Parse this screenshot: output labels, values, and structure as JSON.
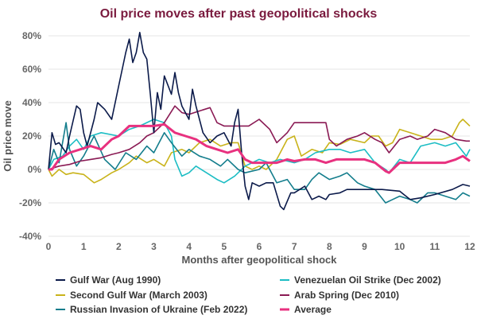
{
  "chart_data": {
    "type": "line",
    "title": "Oil price moves after past geopolitical shocks",
    "xlabel": "Months after geopolitical shock",
    "ylabel": "Oil price move",
    "xlim": [
      0,
      12
    ],
    "ylim": [
      -40,
      80
    ],
    "xticks": [
      "0",
      "1",
      "2",
      "3",
      "4",
      "5",
      "6",
      "7",
      "8",
      "9",
      "10",
      "11",
      "12"
    ],
    "yticks": [
      "-40%",
      "-20%",
      "0%",
      "20%",
      "40%",
      "60%",
      "80%"
    ],
    "grid": "horizontal",
    "legend_position": "bottom",
    "series": [
      {
        "name": "Gulf War (Aug 1990)",
        "color": "#0b1a4a",
        "points": [
          [
            0,
            0
          ],
          [
            0.1,
            22
          ],
          [
            0.2,
            15
          ],
          [
            0.3,
            16
          ],
          [
            0.5,
            10
          ],
          [
            0.6,
            20
          ],
          [
            0.8,
            38
          ],
          [
            0.9,
            36
          ],
          [
            1.0,
            22
          ],
          [
            1.1,
            14
          ],
          [
            1.3,
            30
          ],
          [
            1.4,
            40
          ],
          [
            1.6,
            36
          ],
          [
            1.8,
            30
          ],
          [
            2.0,
            50
          ],
          [
            2.2,
            70
          ],
          [
            2.3,
            78
          ],
          [
            2.4,
            64
          ],
          [
            2.5,
            70
          ],
          [
            2.6,
            82
          ],
          [
            2.7,
            70
          ],
          [
            2.8,
            66
          ],
          [
            2.9,
            45
          ],
          [
            3.0,
            22
          ],
          [
            3.1,
            46
          ],
          [
            3.2,
            36
          ],
          [
            3.3,
            56
          ],
          [
            3.5,
            45
          ],
          [
            3.6,
            58
          ],
          [
            3.7,
            46
          ],
          [
            3.8,
            38
          ],
          [
            4.0,
            30
          ],
          [
            4.1,
            48
          ],
          [
            4.2,
            38
          ],
          [
            4.4,
            22
          ],
          [
            4.6,
            16
          ],
          [
            4.8,
            20
          ],
          [
            5.0,
            22
          ],
          [
            5.2,
            14
          ],
          [
            5.3,
            28
          ],
          [
            5.4,
            36
          ],
          [
            5.5,
            10
          ],
          [
            5.6,
            -10
          ],
          [
            5.7,
            -18
          ],
          [
            5.8,
            -8
          ],
          [
            6.0,
            -10
          ],
          [
            6.2,
            -8
          ],
          [
            6.4,
            -8
          ],
          [
            6.6,
            -22
          ],
          [
            6.7,
            -24
          ],
          [
            6.9,
            -14
          ],
          [
            7.0,
            -14
          ],
          [
            7.3,
            -10
          ],
          [
            7.5,
            -18
          ],
          [
            7.7,
            -16
          ],
          [
            7.9,
            -18
          ],
          [
            8.0,
            -15
          ],
          [
            8.3,
            -14
          ],
          [
            8.5,
            -12
          ],
          [
            9.0,
            -12
          ],
          [
            9.5,
            -12
          ],
          [
            10,
            -13
          ],
          [
            10.3,
            -18
          ],
          [
            10.6,
            -17
          ],
          [
            11,
            -15
          ],
          [
            11.5,
            -12
          ],
          [
            11.8,
            -9
          ],
          [
            12,
            -10
          ]
        ]
      },
      {
        "name": "Second Gulf War (March 2003)",
        "color": "#c9b31a",
        "points": [
          [
            0,
            0
          ],
          [
            0.1,
            -4
          ],
          [
            0.3,
            0
          ],
          [
            0.5,
            -3
          ],
          [
            0.7,
            -2
          ],
          [
            1.0,
            -3
          ],
          [
            1.3,
            -8
          ],
          [
            1.5,
            -6
          ],
          [
            1.8,
            -2
          ],
          [
            2.0,
            0
          ],
          [
            2.3,
            4
          ],
          [
            2.5,
            8
          ],
          [
            2.8,
            4
          ],
          [
            3.0,
            6
          ],
          [
            3.3,
            2
          ],
          [
            3.5,
            10
          ],
          [
            3.8,
            12
          ],
          [
            4.0,
            10
          ],
          [
            4.3,
            16
          ],
          [
            4.6,
            18
          ],
          [
            4.9,
            14
          ],
          [
            5.2,
            16
          ],
          [
            5.4,
            16
          ],
          [
            5.6,
            2
          ],
          [
            5.8,
            0
          ],
          [
            6.0,
            2
          ],
          [
            6.2,
            0
          ],
          [
            6.5,
            6
          ],
          [
            6.8,
            18
          ],
          [
            7.0,
            20
          ],
          [
            7.2,
            8
          ],
          [
            7.5,
            12
          ],
          [
            7.8,
            10
          ],
          [
            8.0,
            16
          ],
          [
            8.3,
            15
          ],
          [
            8.6,
            18
          ],
          [
            9.0,
            16
          ],
          [
            9.2,
            20
          ],
          [
            9.4,
            20
          ],
          [
            9.6,
            14
          ],
          [
            9.8,
            16
          ],
          [
            10.0,
            24
          ],
          [
            10.3,
            22
          ],
          [
            10.6,
            20
          ],
          [
            10.9,
            18
          ],
          [
            11.2,
            18
          ],
          [
            11.5,
            20
          ],
          [
            11.7,
            28
          ],
          [
            11.8,
            30
          ],
          [
            12,
            26
          ]
        ]
      },
      {
        "name": "Russian Invasion of Ukraine (Feb 2022)",
        "color": "#137d8c",
        "points": [
          [
            0,
            0
          ],
          [
            0.15,
            12
          ],
          [
            0.3,
            4
          ],
          [
            0.5,
            28
          ],
          [
            0.6,
            12
          ],
          [
            0.8,
            2
          ],
          [
            1.0,
            8
          ],
          [
            1.3,
            20
          ],
          [
            1.6,
            6
          ],
          [
            1.9,
            0
          ],
          [
            2.2,
            10
          ],
          [
            2.5,
            6
          ],
          [
            2.8,
            14
          ],
          [
            3.0,
            10
          ],
          [
            3.3,
            22
          ],
          [
            3.5,
            16
          ],
          [
            3.8,
            8
          ],
          [
            4.0,
            12
          ],
          [
            4.3,
            8
          ],
          [
            4.6,
            6
          ],
          [
            4.9,
            2
          ],
          [
            5.1,
            6
          ],
          [
            5.4,
            0
          ],
          [
            5.6,
            -2
          ],
          [
            6.0,
            0
          ],
          [
            6.2,
            4
          ],
          [
            6.5,
            -8
          ],
          [
            6.8,
            -6
          ],
          [
            7.0,
            -12
          ],
          [
            7.3,
            -12
          ],
          [
            7.5,
            -6
          ],
          [
            7.7,
            -2
          ],
          [
            8.0,
            -6
          ],
          [
            8.3,
            -4
          ],
          [
            8.5,
            -2
          ],
          [
            8.8,
            -8
          ],
          [
            9.0,
            -10
          ],
          [
            9.3,
            -12
          ],
          [
            9.6,
            -20
          ],
          [
            9.8,
            -18
          ],
          [
            10.0,
            -16
          ],
          [
            10.3,
            -18
          ],
          [
            10.5,
            -20
          ],
          [
            10.8,
            -14
          ],
          [
            11.0,
            -14
          ],
          [
            11.3,
            -16
          ],
          [
            11.6,
            -18
          ],
          [
            11.8,
            -14
          ],
          [
            12,
            -16
          ]
        ]
      },
      {
        "name": "Venezuelan Oil Strike (Dec 2002)",
        "color": "#1cbdc4",
        "points": [
          [
            0,
            0
          ],
          [
            0.15,
            6
          ],
          [
            0.4,
            8
          ],
          [
            0.6,
            14
          ],
          [
            0.8,
            18
          ],
          [
            1.0,
            12
          ],
          [
            1.2,
            20
          ],
          [
            1.5,
            22
          ],
          [
            2.0,
            20
          ],
          [
            2.3,
            24
          ],
          [
            2.6,
            26
          ],
          [
            3.0,
            30
          ],
          [
            3.3,
            28
          ],
          [
            3.5,
            20
          ],
          [
            3.6,
            6
          ],
          [
            3.8,
            -4
          ],
          [
            4.0,
            -2
          ],
          [
            4.2,
            2
          ],
          [
            4.5,
            -2
          ],
          [
            4.8,
            -6
          ],
          [
            5.0,
            -8
          ],
          [
            5.3,
            -4
          ],
          [
            5.6,
            2
          ],
          [
            6.0,
            6
          ],
          [
            6.3,
            4
          ],
          [
            6.6,
            6
          ],
          [
            7.0,
            4
          ],
          [
            7.3,
            6
          ],
          [
            7.6,
            10
          ],
          [
            8.0,
            12
          ],
          [
            8.3,
            12
          ],
          [
            8.6,
            10
          ],
          [
            9.0,
            12
          ],
          [
            9.3,
            4
          ],
          [
            9.6,
            0
          ],
          [
            9.7,
            -2
          ],
          [
            10.0,
            6
          ],
          [
            10.3,
            4
          ],
          [
            10.6,
            14
          ],
          [
            11.0,
            16
          ],
          [
            11.3,
            14
          ],
          [
            11.6,
            16
          ],
          [
            11.9,
            8
          ],
          [
            12,
            12
          ]
        ]
      },
      {
        "name": "Arab Spring (Dec 2010)",
        "color": "#8a1a54",
        "points": [
          [
            0,
            0
          ],
          [
            0.3,
            2
          ],
          [
            0.6,
            3
          ],
          [
            0.9,
            5
          ],
          [
            1.2,
            6
          ],
          [
            1.5,
            7
          ],
          [
            1.8,
            9
          ],
          [
            2.0,
            10
          ],
          [
            2.3,
            12
          ],
          [
            2.6,
            16
          ],
          [
            2.8,
            20
          ],
          [
            3.0,
            22
          ],
          [
            3.3,
            28
          ],
          [
            3.6,
            38
          ],
          [
            3.8,
            34
          ],
          [
            4.0,
            33
          ],
          [
            4.3,
            35
          ],
          [
            4.6,
            37
          ],
          [
            4.8,
            28
          ],
          [
            5.0,
            26
          ],
          [
            5.4,
            26
          ],
          [
            5.7,
            26
          ],
          [
            6.0,
            30
          ],
          [
            6.3,
            24
          ],
          [
            6.5,
            16
          ],
          [
            6.8,
            22
          ],
          [
            7.0,
            28
          ],
          [
            7.3,
            28
          ],
          [
            7.6,
            28
          ],
          [
            7.9,
            28
          ],
          [
            8.0,
            18
          ],
          [
            8.2,
            14
          ],
          [
            8.5,
            18
          ],
          [
            8.8,
            20
          ],
          [
            9.0,
            22
          ],
          [
            9.3,
            18
          ],
          [
            9.5,
            16
          ],
          [
            9.7,
            10
          ],
          [
            10.0,
            18
          ],
          [
            10.3,
            20
          ],
          [
            10.5,
            18
          ],
          [
            10.8,
            20
          ],
          [
            11.0,
            24
          ],
          [
            11.3,
            22
          ],
          [
            11.6,
            18
          ],
          [
            11.9,
            17
          ],
          [
            12,
            17
          ]
        ]
      },
      {
        "name": "Average",
        "color": "#e8317f",
        "points": [
          [
            0,
            0
          ],
          [
            0.1,
            0
          ],
          [
            0.3,
            6
          ],
          [
            0.6,
            10
          ],
          [
            0.9,
            12
          ],
          [
            1.2,
            14
          ],
          [
            1.5,
            12
          ],
          [
            1.8,
            18
          ],
          [
            2.0,
            20
          ],
          [
            2.3,
            26
          ],
          [
            2.6,
            26
          ],
          [
            3.0,
            26
          ],
          [
            3.3,
            27
          ],
          [
            3.6,
            22
          ],
          [
            3.9,
            20
          ],
          [
            4.2,
            18
          ],
          [
            4.5,
            14
          ],
          [
            4.8,
            12
          ],
          [
            5.1,
            10
          ],
          [
            5.4,
            12
          ],
          [
            5.6,
            6
          ],
          [
            5.8,
            4
          ],
          [
            6.2,
            4
          ],
          [
            6.5,
            4
          ],
          [
            6.8,
            6
          ],
          [
            7.0,
            5
          ],
          [
            7.3,
            6
          ],
          [
            7.6,
            6
          ],
          [
            7.9,
            4
          ],
          [
            8.2,
            6
          ],
          [
            8.5,
            6
          ],
          [
            8.8,
            6
          ],
          [
            9.0,
            6
          ],
          [
            9.3,
            4
          ],
          [
            9.6,
            -1
          ],
          [
            9.7,
            -2
          ],
          [
            10.0,
            4
          ],
          [
            10.3,
            4
          ],
          [
            10.6,
            4
          ],
          [
            11.0,
            4
          ],
          [
            11.3,
            4
          ],
          [
            11.6,
            6
          ],
          [
            11.8,
            8
          ],
          [
            12,
            5
          ]
        ]
      }
    ]
  }
}
